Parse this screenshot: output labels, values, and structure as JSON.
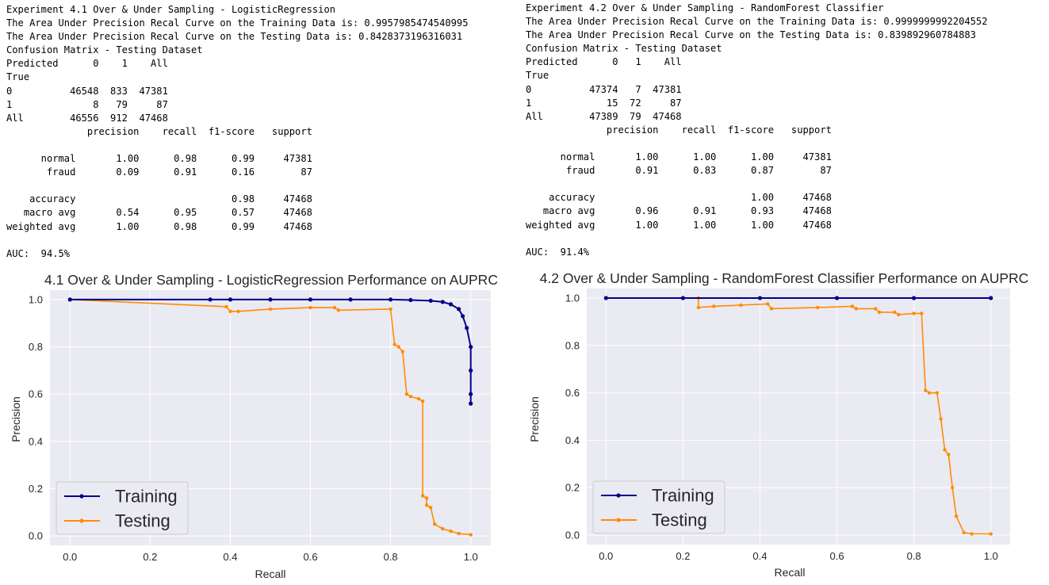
{
  "panels": [
    {
      "report_lines": [
        "Experiment 4.1 Over & Under Sampling - LogisticRegression",
        "The Area Under Precision Recal Curve on the Training Data is: 0.9957985474540995",
        "The Area Under Precision Recal Curve on the Testing Data is: 0.8428373196316031",
        "Confusion Matrix - Testing Dataset",
        "Predicted      0    1    All",
        "True",
        "0          46548  833  47381",
        "1              8   79     87",
        "All        46556  912  47468",
        "              precision    recall  f1-score   support",
        "",
        "      normal       1.00      0.98      0.99     47381",
        "       fraud       0.09      0.91      0.16        87",
        "",
        "    accuracy                           0.98     47468",
        "   macro avg       0.54      0.95      0.57     47468",
        "weighted avg       1.00      0.98      0.99     47468",
        "",
        "AUC:  94.5%"
      ]
    },
    {
      "report_lines": [
        "Experiment 4.2 Over & Under Sampling - RandomForest Classifier",
        "The Area Under Precision Recal Curve on the Training Data is: 0.9999999992204552",
        "The Area Under Precision Recal Curve on the Testing Data is: 0.839892960784883",
        "Confusion Matrix - Testing Dataset",
        "Predicted      0   1    All",
        "True",
        "0          47374   7  47381",
        "1             15  72     87",
        "All        47389  79  47468",
        "              precision    recall  f1-score   support",
        "",
        "      normal       1.00      1.00      1.00     47381",
        "       fraud       0.91      0.83      0.87        87",
        "",
        "    accuracy                           1.00     47468",
        "   macro avg       0.96      0.91      0.93     47468",
        "weighted avg       1.00      1.00      1.00     47468",
        "",
        "AUC:  91.4%"
      ]
    }
  ],
  "colors": {
    "training": "#00008b",
    "testing": "#ff8c00",
    "plot_bg": "#eaeaf2",
    "grid": "#ffffff",
    "text": "#262626"
  },
  "chart_data": [
    {
      "type": "line",
      "title": "4.1 Over & Under Sampling - LogisticRegression Performance on AUPRC",
      "xlabel": "Recall",
      "ylabel": "Precision",
      "xlim": [
        -0.05,
        1.05
      ],
      "ylim": [
        -0.04,
        1.04
      ],
      "xticks": [
        0.0,
        0.2,
        0.4,
        0.6,
        0.8,
        1.0
      ],
      "yticks": [
        0.0,
        0.2,
        0.4,
        0.6,
        0.8,
        1.0
      ],
      "xtick_labels": [
        "0.0",
        "0.2",
        "0.4",
        "0.6",
        "0.8",
        "1.0"
      ],
      "ytick_labels": [
        "0.0",
        "0.2",
        "0.4",
        "0.6",
        "0.8",
        "1.0"
      ],
      "grid": true,
      "legend_position": "bottom-left",
      "series": [
        {
          "name": "Training",
          "x": [
            0.0,
            0.35,
            0.4,
            0.5,
            0.6,
            0.7,
            0.8,
            0.85,
            0.9,
            0.93,
            0.95,
            0.97,
            0.98,
            0.99,
            1.0,
            1.0,
            1.0,
            1.0
          ],
          "y": [
            1.0,
            1.0,
            1.0,
            1.0,
            1.0,
            1.0,
            1.0,
            0.998,
            0.995,
            0.99,
            0.98,
            0.96,
            0.93,
            0.88,
            0.8,
            0.7,
            0.6,
            0.56
          ]
        },
        {
          "name": "Testing",
          "x": [
            0.0,
            0.39,
            0.4,
            0.42,
            0.5,
            0.6,
            0.66,
            0.67,
            0.8,
            0.81,
            0.82,
            0.83,
            0.84,
            0.85,
            0.87,
            0.88,
            0.88,
            0.89,
            0.89,
            0.9,
            0.91,
            0.93,
            0.95,
            0.97,
            1.0
          ],
          "y": [
            1.0,
            0.97,
            0.95,
            0.95,
            0.96,
            0.966,
            0.966,
            0.955,
            0.96,
            0.81,
            0.8,
            0.78,
            0.6,
            0.59,
            0.58,
            0.57,
            0.17,
            0.16,
            0.13,
            0.12,
            0.05,
            0.03,
            0.02,
            0.01,
            0.005
          ]
        }
      ]
    },
    {
      "type": "line",
      "title": "4.2 Over & Under Sampling - RandomForest Classifier Performance on AUPRC",
      "xlabel": "Recall",
      "ylabel": "Precision",
      "xlim": [
        -0.05,
        1.05
      ],
      "ylim": [
        -0.04,
        1.04
      ],
      "xticks": [
        0.0,
        0.2,
        0.4,
        0.6,
        0.8,
        1.0
      ],
      "yticks": [
        0.0,
        0.2,
        0.4,
        0.6,
        0.8,
        1.0
      ],
      "xtick_labels": [
        "0.0",
        "0.2",
        "0.4",
        "0.6",
        "0.8",
        "1.0"
      ],
      "ytick_labels": [
        "0.0",
        "0.2",
        "0.4",
        "0.6",
        "0.8",
        "1.0"
      ],
      "grid": true,
      "legend_position": "bottom-left",
      "series": [
        {
          "name": "Training",
          "x": [
            0.0,
            0.2,
            0.4,
            0.6,
            0.8,
            1.0
          ],
          "y": [
            1.0,
            1.0,
            1.0,
            1.0,
            1.0,
            1.0
          ]
        },
        {
          "name": "Testing",
          "x": [
            0.0,
            0.24,
            0.24,
            0.28,
            0.35,
            0.42,
            0.43,
            0.55,
            0.64,
            0.65,
            0.7,
            0.71,
            0.75,
            0.76,
            0.8,
            0.82,
            0.83,
            0.84,
            0.86,
            0.87,
            0.88,
            0.89,
            0.9,
            0.91,
            0.93,
            0.95,
            1.0
          ],
          "y": [
            1.0,
            1.0,
            0.96,
            0.965,
            0.97,
            0.975,
            0.955,
            0.96,
            0.965,
            0.955,
            0.955,
            0.94,
            0.94,
            0.93,
            0.935,
            0.935,
            0.61,
            0.6,
            0.6,
            0.49,
            0.36,
            0.34,
            0.2,
            0.08,
            0.01,
            0.005,
            0.005
          ]
        }
      ]
    }
  ]
}
